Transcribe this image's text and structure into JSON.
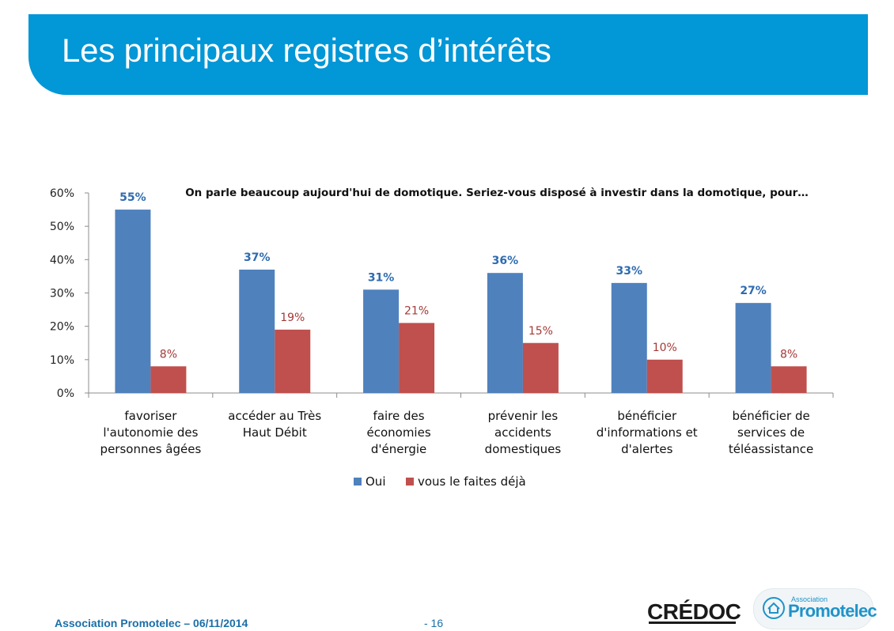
{
  "slide": {
    "title": "Les principaux registres d’intérêts",
    "footer_left": "Association Promotelec – 06/11/2014",
    "page_number": "-  16"
  },
  "logos": {
    "credoc": "CRÉDOC",
    "promotelec_small": "Association",
    "promotelec_name": "Promotelec"
  },
  "chart_data": {
    "type": "bar",
    "title": "On parle beaucoup aujourd'hui de domotique. Seriez-vous disposé à investir dans la domotique, pour…",
    "categories": [
      [
        "favoriser",
        "l'autonomie des",
        "personnes âgées"
      ],
      [
        "accéder au Très",
        "Haut Débit"
      ],
      [
        "faire des",
        "économies",
        "d'énergie"
      ],
      [
        "prévenir les",
        "accidents",
        "domestiques"
      ],
      [
        "bénéficier",
        "d'informations et",
        "d'alertes"
      ],
      [
        "bénéficier de",
        "services de",
        "téléassistance"
      ]
    ],
    "series": [
      {
        "name": "Oui",
        "values": [
          55,
          37,
          31,
          36,
          33,
          27
        ],
        "labels": [
          "55%",
          "37%",
          "31%",
          "36%",
          "33%",
          "27%"
        ],
        "color": "#4f81bd",
        "label_color": "#2e6bb0"
      },
      {
        "name": "vous le faites déjà",
        "values": [
          8,
          19,
          21,
          15,
          10,
          8
        ],
        "labels": [
          "8%",
          "19%",
          "21%",
          "15%",
          "10%",
          "8%"
        ],
        "color": "#c0504d",
        "label_color": "#a33a37"
      }
    ],
    "yticks": [
      "0%",
      "10%",
      "20%",
      "30%",
      "40%",
      "50%",
      "60%"
    ],
    "ylim": [
      0,
      60
    ],
    "grid": false,
    "legend": "bottom"
  },
  "colors": {
    "banner": "#0297d6",
    "footer_text": "#1b6fa8"
  }
}
